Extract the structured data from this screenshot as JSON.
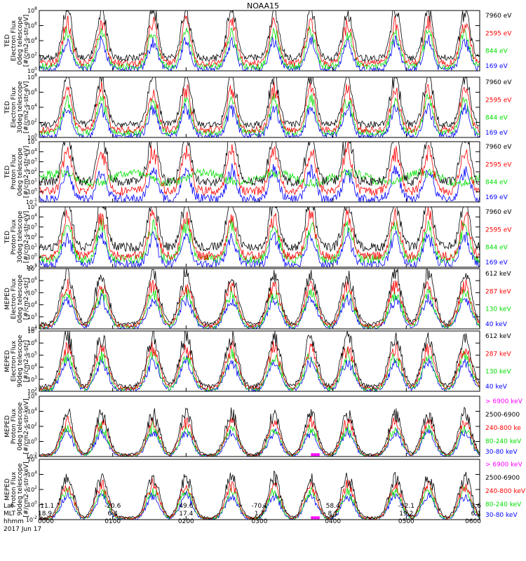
{
  "title": "NOAA15",
  "colors": {
    "blue": "#0000ff",
    "red": "#ff0000",
    "green": "#00e000",
    "black": "#000000",
    "magenta": "#ff00ff"
  },
  "chart_data": [
    {
      "type": "line",
      "ylabel": [
        "TED",
        "Electron Flux",
        "0deg telescope",
        "[#/cm2-s-str-eV]"
      ],
      "ytick_exponents": [
        0,
        2,
        4,
        6,
        8
      ],
      "ylim_log10": [
        0,
        8
      ],
      "series": [
        {
          "name": "7960 eV",
          "color": "black"
        },
        {
          "name": "2595 eV",
          "color": "red"
        },
        {
          "name": "844 eV",
          "color": "green"
        },
        {
          "name": "169 eV",
          "color": "blue"
        }
      ]
    },
    {
      "type": "line",
      "ylabel": [
        "TED",
        "Electron Flux",
        "30deg telescope",
        "[#/cm2-s-str-eV]"
      ],
      "ytick_exponents": [
        0,
        2,
        4,
        6,
        8
      ],
      "ylim_log10": [
        0,
        8
      ],
      "series": [
        {
          "name": "7960 eV",
          "color": "black"
        },
        {
          "name": "2595 eV",
          "color": "red"
        },
        {
          "name": "844 eV",
          "color": "green"
        },
        {
          "name": "169 eV",
          "color": "blue"
        }
      ]
    },
    {
      "type": "line",
      "ylabel": [
        "TED",
        "Proton Flux",
        "0deg telescope",
        "[#/cm2-s-str-eV]"
      ],
      "ytick_exponents": [
        -1,
        0,
        1,
        2,
        3,
        4,
        5
      ],
      "ylim_log10": [
        -1,
        5
      ],
      "series": [
        {
          "name": "7960 eV",
          "color": "black"
        },
        {
          "name": "2595 eV",
          "color": "red"
        },
        {
          "name": "844 eV",
          "color": "green"
        },
        {
          "name": "169 eV",
          "color": "blue"
        }
      ]
    },
    {
      "type": "line",
      "ylabel": [
        "TED",
        "Proton Flux",
        "30deg telescope",
        "[#/cm2-s-str-eV]"
      ],
      "ytick_exponents": [
        -1,
        0,
        1,
        2,
        3,
        4,
        5
      ],
      "ylim_log10": [
        -1,
        5
      ],
      "series": [
        {
          "name": "7960 eV",
          "color": "black"
        },
        {
          "name": "2595 eV",
          "color": "red"
        },
        {
          "name": "844 eV",
          "color": "green"
        },
        {
          "name": "169 eV",
          "color": "blue"
        }
      ]
    },
    {
      "type": "line",
      "ylabel": [
        "MEPED",
        "Electron Flux",
        "0deg telescope",
        "[#/cm2-s-str]"
      ],
      "ytick_exponents": [
        2,
        3,
        4,
        5,
        6,
        7
      ],
      "ylim_log10": [
        2,
        7
      ],
      "series": [
        {
          "name": "612 keV",
          "color": "black"
        },
        {
          "name": "287 keV",
          "color": "red"
        },
        {
          "name": "130 keV",
          "color": "green"
        },
        {
          "name": "40 keV",
          "color": "blue"
        }
      ]
    },
    {
      "type": "line",
      "ylabel": [
        "MEPED",
        "Electron Flux",
        "90deg telescope",
        "[#/cm2-s-str]"
      ],
      "ytick_exponents": [
        2,
        3,
        4,
        5,
        6,
        7
      ],
      "ylim_log10": [
        2,
        7
      ],
      "series": [
        {
          "name": "612 keV",
          "color": "black"
        },
        {
          "name": "287 keV",
          "color": "red"
        },
        {
          "name": "130 keV",
          "color": "green"
        },
        {
          "name": "40 keV",
          "color": "blue"
        }
      ]
    },
    {
      "type": "line",
      "ylabel": [
        "MEPED",
        "Proton Flux",
        "0deg telescope",
        "[#/cm2-s-str-keV]"
      ],
      "ytick_exponents": [
        -2,
        0,
        2,
        4,
        6
      ],
      "ylim_log10": [
        -2,
        6
      ],
      "series": [
        {
          "name": "> 6900 keV",
          "color": "magenta"
        },
        {
          "name": "2500-6900",
          "color": "black"
        },
        {
          "name": "240-800 ke",
          "color": "red"
        },
        {
          "name": "80-240 keV",
          "color": "green"
        },
        {
          "name": "30-80 keV",
          "color": "blue"
        }
      ]
    },
    {
      "type": "line",
      "ylabel": [
        "MEPED",
        "Proton Flux",
        "90deg telescope",
        "[#/cm2-s-str-keV]"
      ],
      "ytick_exponents": [
        -2,
        0,
        2,
        4,
        6
      ],
      "ylim_log10": [
        -2,
        6
      ],
      "series": [
        {
          "name": "> 6900 keV",
          "color": "magenta"
        },
        {
          "name": "2500-6900",
          "color": "black"
        },
        {
          "name": "240-800 keV",
          "color": "red"
        },
        {
          "name": "80-240 keV",
          "color": "green"
        },
        {
          "name": "30-80 keV",
          "color": "blue"
        }
      ]
    }
  ],
  "x_axis": {
    "row_labels": [
      "Lat",
      "MLT",
      "hhmm"
    ],
    "date": "2017 Jun 17",
    "ticks": [
      {
        "time": "0000",
        "lat": "-11.1",
        "mlt": "18.9"
      },
      {
        "time": "0100",
        "lat": "-20.6",
        "mlt": "6.4"
      },
      {
        "time": "0200",
        "lat": "49.6",
        "mlt": "17.4"
      },
      {
        "time": "0300",
        "lat": "-70.1",
        "mlt": "1.7"
      },
      {
        "time": "0400",
        "lat": "58.4",
        "mlt": "8.1"
      },
      {
        "time": "0500",
        "lat": "-32.1",
        "mlt": "19.2"
      },
      {
        "time": "0600",
        "lat": "3.6",
        "mlt": "6.1"
      }
    ]
  }
}
